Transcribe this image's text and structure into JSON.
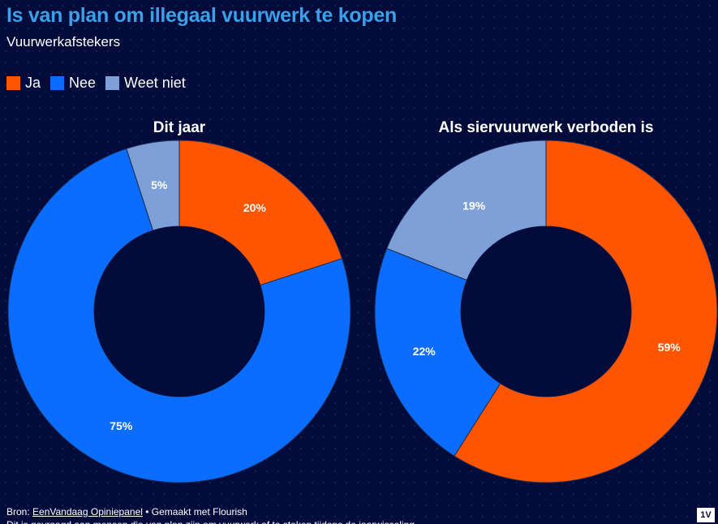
{
  "header": {
    "title": "Is van plan om illegaal vuurwerk te kopen",
    "subtitle": "Vuurwerkafstekers"
  },
  "legend": [
    {
      "label": "Ja",
      "color": "#ff5500"
    },
    {
      "label": "Nee",
      "color": "#0a6dff"
    },
    {
      "label": "Weet niet",
      "color": "#7f9fd8"
    }
  ],
  "footer": {
    "source_prefix": "Bron: ",
    "source_link": "EenVandaag Opiniepanel",
    "made_with": " • Gemaakt met Flourish",
    "note_partial": "Dit is gevraagd aan mensen die van plan zijn om vuurwerk af te steken tijdens de jaarwisseling",
    "logo": "1V"
  },
  "chart_data": [
    {
      "type": "pie",
      "title": "Dit jaar",
      "donut": true,
      "categories": [
        "Ja",
        "Nee",
        "Weet niet"
      ],
      "values": [
        20,
        75,
        5
      ],
      "labels": [
        "20%",
        "75%",
        "5%"
      ],
      "colors": [
        "#ff5500",
        "#0a6dff",
        "#7f9fd8"
      ]
    },
    {
      "type": "pie",
      "title": "Als siervuurwerk verboden is",
      "donut": true,
      "categories": [
        "Ja",
        "Nee",
        "Weet niet"
      ],
      "values": [
        59,
        22,
        19
      ],
      "labels": [
        "59%",
        "22%",
        "19%"
      ],
      "colors": [
        "#ff5500",
        "#0a6dff",
        "#7f9fd8"
      ]
    }
  ]
}
